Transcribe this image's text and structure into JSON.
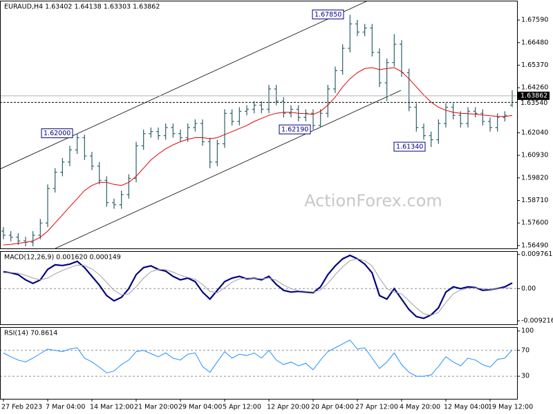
{
  "chart_data": [
    {
      "type": "ohlc",
      "title": "EURAUD,H4  1.63402 1.64138 1.63303 1.63862",
      "watermark": "ActionForex.com",
      "categories": [
        "27 Feb 2023",
        null,
        null,
        null,
        null,
        null,
        "7 Mar 04:00",
        null,
        null,
        null,
        null,
        null,
        "14 Mar 12:00",
        null,
        null,
        null,
        null,
        null,
        "21 Mar 20:00",
        null,
        null,
        null,
        null,
        null,
        "29 Mar 04:00",
        null,
        null,
        null,
        null,
        null,
        "5 Apr 12:00",
        null,
        null,
        null,
        null,
        null,
        "12 Apr 20:00",
        null,
        null,
        null,
        null,
        null,
        "20 Apr 04:00",
        null,
        null,
        null,
        null,
        null,
        "27 Apr 12:00",
        null,
        null,
        null,
        null,
        null,
        "4 May 20:00",
        null,
        null,
        null,
        null,
        null,
        "12 May 04:00",
        null,
        null,
        null,
        null,
        null,
        "19 May 12:00",
        null,
        null,
        null
      ],
      "color": "#2b5f6b",
      "open": [
        1.572,
        1.57,
        1.569,
        1.5672,
        1.5665,
        1.57,
        1.576,
        1.593,
        1.601,
        1.606,
        1.612,
        1.618,
        1.609,
        1.604,
        1.597,
        1.586,
        1.585,
        1.59,
        1.598,
        1.614,
        1.62,
        1.621,
        1.619,
        1.623,
        1.62,
        1.618,
        1.623,
        1.625,
        1.616,
        1.606,
        1.615,
        1.63,
        1.626,
        1.631,
        1.632,
        1.634,
        1.632,
        1.642,
        1.636,
        1.63,
        1.632,
        1.628,
        1.63,
        1.624,
        1.63,
        1.642,
        1.651,
        1.662,
        1.674,
        1.67,
        1.672,
        1.66,
        1.645,
        1.655,
        1.664,
        1.65,
        1.633,
        1.623,
        1.619,
        1.617,
        1.625,
        1.633,
        1.629,
        1.625,
        1.631,
        1.63,
        1.626,
        1.623,
        1.628,
        1.63402
      ],
      "high": [
        1.574,
        1.572,
        1.571,
        1.5692,
        1.572,
        1.578,
        1.595,
        1.603,
        1.608,
        1.614,
        1.62,
        1.6195,
        1.611,
        1.606,
        1.599,
        1.588,
        1.592,
        1.6,
        1.616,
        1.622,
        1.623,
        1.623,
        1.625,
        1.625,
        1.622,
        1.625,
        1.627,
        1.627,
        1.618,
        1.617,
        1.632,
        1.632,
        1.633,
        1.634,
        1.636,
        1.636,
        1.644,
        1.644,
        1.638,
        1.634,
        1.634,
        1.632,
        1.632,
        1.632,
        1.644,
        1.653,
        1.664,
        1.6785,
        1.676,
        1.674,
        1.674,
        1.662,
        1.657,
        1.669,
        1.666,
        1.652,
        1.635,
        1.625,
        1.621,
        1.627,
        1.635,
        1.635,
        1.631,
        1.633,
        1.633,
        1.632,
        1.628,
        1.63,
        1.631,
        1.64138
      ],
      "low": [
        1.568,
        1.567,
        1.5652,
        1.5645,
        1.5645,
        1.568,
        1.574,
        1.591,
        1.599,
        1.604,
        1.61,
        1.607,
        1.602,
        1.595,
        1.584,
        1.583,
        1.583,
        1.588,
        1.596,
        1.612,
        1.618,
        1.617,
        1.617,
        1.618,
        1.616,
        1.616,
        1.621,
        1.614,
        1.603,
        1.604,
        1.613,
        1.624,
        1.624,
        1.629,
        1.63,
        1.63,
        1.63,
        1.634,
        1.628,
        1.628,
        1.626,
        1.626,
        1.6219,
        1.623,
        1.628,
        1.64,
        1.649,
        1.66,
        1.668,
        1.668,
        1.658,
        1.643,
        1.636,
        1.653,
        1.648,
        1.631,
        1.621,
        1.617,
        1.6134,
        1.615,
        1.623,
        1.627,
        1.623,
        1.623,
        1.628,
        1.624,
        1.621,
        1.621,
        1.626,
        1.63303
      ],
      "close": [
        1.57,
        1.569,
        1.5672,
        1.5665,
        1.57,
        1.576,
        1.593,
        1.601,
        1.606,
        1.612,
        1.618,
        1.609,
        1.604,
        1.597,
        1.586,
        1.585,
        1.59,
        1.598,
        1.614,
        1.62,
        1.621,
        1.619,
        1.623,
        1.62,
        1.618,
        1.623,
        1.625,
        1.616,
        1.606,
        1.615,
        1.63,
        1.626,
        1.631,
        1.632,
        1.634,
        1.632,
        1.642,
        1.636,
        1.63,
        1.632,
        1.628,
        1.63,
        1.624,
        1.63,
        1.642,
        1.651,
        1.662,
        1.674,
        1.67,
        1.672,
        1.66,
        1.645,
        1.655,
        1.664,
        1.65,
        1.633,
        1.623,
        1.619,
        1.617,
        1.625,
        1.633,
        1.629,
        1.625,
        1.631,
        1.63,
        1.626,
        1.623,
        1.628,
        1.629,
        1.63862
      ],
      "overlay": {
        "color": "#e00000",
        "values": [
          1.5652,
          1.5655,
          1.566,
          1.5665,
          1.5672,
          1.569,
          1.572,
          1.576,
          1.58,
          1.584,
          1.588,
          1.592,
          1.5945,
          1.596,
          1.596,
          1.595,
          1.5945,
          1.596,
          1.599,
          1.603,
          1.607,
          1.61,
          1.6125,
          1.6145,
          1.616,
          1.6172,
          1.618,
          1.618,
          1.6175,
          1.618,
          1.6195,
          1.621,
          1.6225,
          1.624,
          1.626,
          1.6275,
          1.629,
          1.63,
          1.6305,
          1.6305,
          1.63,
          1.6298,
          1.6295,
          1.631,
          1.634,
          1.638,
          1.643,
          1.647,
          1.65,
          1.652,
          1.6525,
          1.6515,
          1.652,
          1.6525,
          1.6505,
          1.647,
          1.643,
          1.639,
          1.6355,
          1.633,
          1.6315,
          1.6305,
          1.63,
          1.6298,
          1.6296,
          1.6292,
          1.6288,
          1.6285,
          1.6284,
          1.629
        ]
      },
      "annotations": [
        "1.62000",
        "1.67850",
        "1.62190",
        "1.61340"
      ],
      "current_price": {
        "value": 1.63862,
        "label": "1.63862"
      },
      "level": {
        "value": 1.6354,
        "label": "1.63540"
      },
      "ylim": [
        1.5635,
        1.6851
      ],
      "yticks": [
        {
          "value": 1.6759,
          "label": "1.67590"
        },
        {
          "value": 1.6648,
          "label": "1.66480"
        },
        {
          "value": 1.6537,
          "label": "1.65370"
        },
        {
          "value": 1.6426,
          "label": "1.64260"
        },
        {
          "value": 1.6204,
          "label": "1.62040"
        },
        {
          "value": 1.6093,
          "label": "1.60930"
        },
        {
          "value": 1.5982,
          "label": "1.59820"
        },
        {
          "value": 1.5871,
          "label": "1.58710"
        },
        {
          "value": 1.576,
          "label": "1.57600"
        },
        {
          "value": 1.5649,
          "label": "1.56490"
        }
      ]
    },
    {
      "type": "line",
      "title": "MACD(12,26,9) 0.001620 0.000149",
      "series": [
        {
          "color": "#000080",
          "width": 2.2,
          "values": [
            0.0048,
            0.0045,
            0.004,
            0.0025,
            0.0015,
            0.0025,
            0.0055,
            0.0068,
            0.0066,
            0.007,
            0.0078,
            0.006,
            0.0035,
            0.001,
            -0.002,
            -0.0035,
            -0.0025,
            0.0,
            0.004,
            0.006,
            0.0065,
            0.0055,
            0.005,
            0.0035,
            0.0025,
            0.003,
            0.002,
            -0.001,
            -0.003,
            -0.0005,
            0.002,
            0.003,
            0.0035,
            0.0028,
            0.003,
            0.0025,
            0.0035,
            0.0012,
            -0.0005,
            -0.001,
            -0.0008,
            -0.001,
            -0.0012,
            0.0005,
            0.004,
            0.0065,
            0.0085,
            0.0095,
            0.0085,
            0.007,
            0.0045,
            -0.002,
            -0.003,
            0.0,
            -0.003,
            -0.006,
            -0.008,
            -0.0085,
            -0.0075,
            -0.0055,
            -0.001,
            0.0005,
            0.0,
            0.0005,
            0.0003,
            -0.0005,
            -0.0003,
            0.0,
            0.0005,
            0.0016
          ]
        },
        {
          "color": "#a0a0a0",
          "width": 1,
          "values": [
            0.0045,
            0.0046,
            0.0044,
            0.0038,
            0.003,
            0.0025,
            0.003,
            0.0042,
            0.0052,
            0.006,
            0.0067,
            0.0066,
            0.0056,
            0.004,
            0.0018,
            -0.0005,
            -0.0018,
            -0.0015,
            0.0005,
            0.003,
            0.0048,
            0.0055,
            0.0054,
            0.0047,
            0.0038,
            0.0032,
            0.0027,
            0.0012,
            -0.0008,
            -0.0012,
            0.0002,
            0.0018,
            0.0028,
            0.003,
            0.003,
            0.0028,
            0.003,
            0.0024,
            0.001,
            0.0,
            -0.0006,
            -0.0008,
            -0.001,
            -0.0004,
            0.0015,
            0.004,
            0.0062,
            0.008,
            0.0085,
            0.008,
            0.0065,
            0.003,
            0.0,
            -0.001,
            -0.0015,
            -0.0035,
            -0.0055,
            -0.0072,
            -0.0076,
            -0.0068,
            -0.004,
            -0.0015,
            -0.0004,
            0.0001,
            0.0002,
            0.0,
            -0.0002,
            -0.0001,
            0.0002,
            0.000149
          ]
        }
      ],
      "dashed_levels": [
        0
      ],
      "ylim": [
        -0.0102,
        0.0105
      ],
      "yticks": [
        0.009761,
        {
          "value": 0,
          "label": "0.00"
        },
        -0.009216
      ]
    },
    {
      "type": "line",
      "title": "RSI(14) 70.8614",
      "series": [
        {
          "color": "#1e90ff",
          "width": 1,
          "values": [
            66,
            60,
            55,
            52,
            58,
            65,
            72,
            70,
            68,
            72,
            74,
            58,
            52,
            44,
            35,
            38,
            48,
            55,
            68,
            70,
            65,
            60,
            66,
            58,
            55,
            64,
            66,
            45,
            36,
            52,
            68,
            58,
            64,
            62,
            66,
            58,
            70,
            55,
            48,
            52,
            46,
            50,
            40,
            55,
            68,
            74,
            80,
            86,
            72,
            74,
            58,
            42,
            52,
            66,
            48,
            36,
            30,
            30,
            32,
            45,
            60,
            52,
            46,
            58,
            55,
            48,
            44,
            56,
            58,
            70.8614
          ]
        }
      ],
      "dashed_levels": [
        70,
        30
      ],
      "ylim": [
        -5,
        105
      ],
      "yticks": [
        100,
        70,
        30
      ]
    }
  ]
}
